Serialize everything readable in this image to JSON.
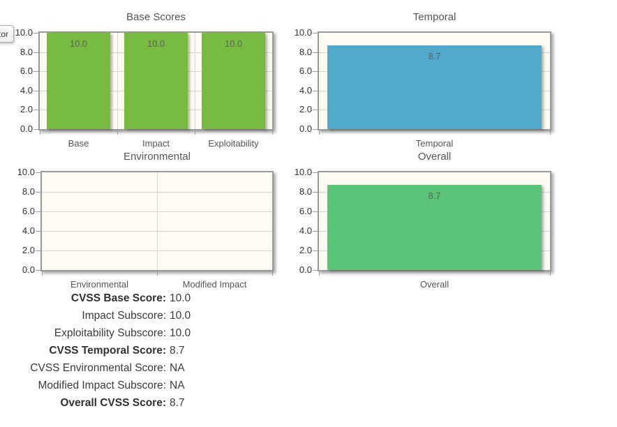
{
  "vector_button": {
    "visible_label": "tor"
  },
  "chart_data": [
    {
      "type": "bar",
      "title": "Base Scores",
      "categories": [
        "Base",
        "Impact",
        "Exploitability"
      ],
      "values": [
        10.0,
        10.0,
        10.0
      ],
      "value_labels": [
        "10.0",
        "10.0",
        "10.0"
      ],
      "ylim": [
        0,
        10
      ],
      "yticks": [
        "10.0",
        "8.0",
        "6.0",
        "4.0",
        "2.0",
        "0.0"
      ],
      "bar_color": "#77bb41",
      "grid": true,
      "legend": "none"
    },
    {
      "type": "bar",
      "title": "Temporal",
      "categories": [
        "Temporal"
      ],
      "values": [
        8.7
      ],
      "value_labels": [
        "8.7"
      ],
      "ylim": [
        0,
        10
      ],
      "yticks": [
        "10.0",
        "8.0",
        "6.0",
        "4.0",
        "2.0",
        "0.0"
      ],
      "bar_color": "#51a9cc",
      "grid": true,
      "legend": "none"
    },
    {
      "type": "bar",
      "title": "Environmental",
      "categories": [
        "Environmental",
        "Modified Impact"
      ],
      "values": [],
      "value_labels": [],
      "ylim": [
        0,
        10
      ],
      "yticks": [
        "10.0",
        "8.0",
        "6.0",
        "4.0",
        "2.0",
        "0.0"
      ],
      "bar_color": null,
      "grid": true,
      "legend": "none"
    },
    {
      "type": "bar",
      "title": "Overall",
      "categories": [
        "Overall"
      ],
      "values": [
        8.7
      ],
      "value_labels": [
        "8.7"
      ],
      "ylim": [
        0,
        10
      ],
      "yticks": [
        "10.0",
        "8.0",
        "6.0",
        "4.0",
        "2.0",
        "0.0"
      ],
      "bar_color": "#59c475",
      "grid": true,
      "legend": "none"
    }
  ],
  "scores": [
    {
      "label": "CVSS Base Score:",
      "value": "10.0",
      "bold": true
    },
    {
      "label": "Impact Subscore:",
      "value": "10.0",
      "bold": false
    },
    {
      "label": "Exploitability Subscore:",
      "value": "10.0",
      "bold": false
    },
    {
      "label": "CVSS Temporal Score:",
      "value": "8.7",
      "bold": true
    },
    {
      "label": "CVSS Environmental Score:",
      "value": "NA",
      "bold": false
    },
    {
      "label": "Modified Impact Subscore:",
      "value": "NA",
      "bold": false
    },
    {
      "label": "Overall CVSS Score:",
      "value": "8.7",
      "bold": true
    }
  ],
  "colors": {
    "chart_bg": "#fdfbf3",
    "grid_line": "#d5d5d5",
    "frame_border": "#999999",
    "tick_mark": "#999999",
    "title_text": "#555555",
    "ytick_text": "#2f2f2f",
    "xlabel_text": "#545454",
    "bar_label_text": "#5c5c5c",
    "score_text": "#3a3a3a",
    "base_bar": "#77bb41",
    "temporal_bar": "#51a9cc",
    "overall_bar": "#59c475"
  }
}
